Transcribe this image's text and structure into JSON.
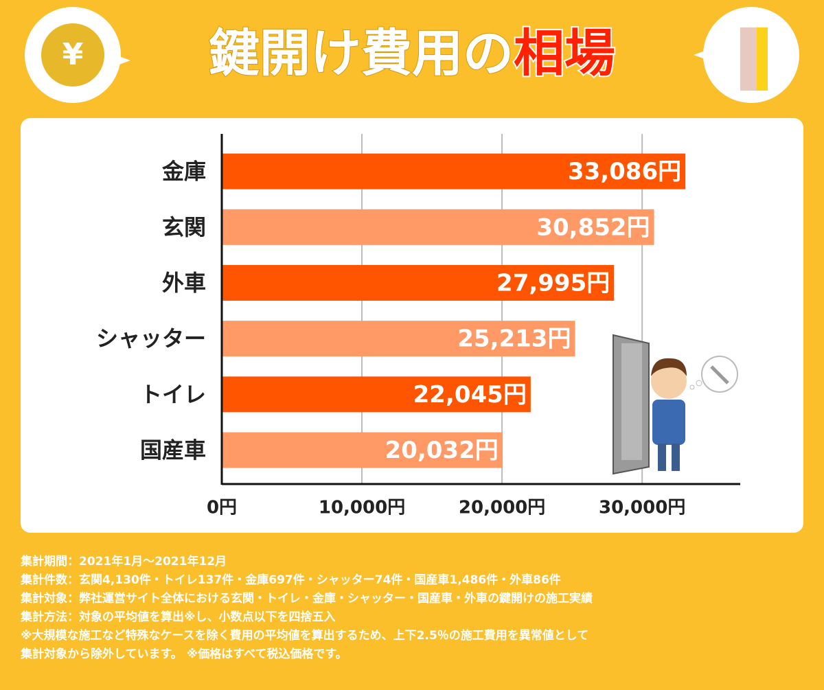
{
  "chart_data": {
    "type": "barh",
    "title": "鍵開け費用の",
    "title_highlight": "相場",
    "categories": [
      "金庫",
      "玄関",
      "外車",
      "シャッター",
      "トイレ",
      "国産車"
    ],
    "values": [
      33086,
      30852,
      27995,
      25213,
      22045,
      20032
    ],
    "value_labels": [
      "33,086円",
      "30,852円",
      "27,995円",
      "25,213円",
      "22,045円",
      "20,032円"
    ],
    "colors": [
      "#ff5500",
      "#ff9966",
      "#ff5500",
      "#ff9966",
      "#ff5500",
      "#ff9966"
    ],
    "xlim": [
      0,
      37000
    ],
    "xticks": [
      {
        "value": 0,
        "label": "0円"
      },
      {
        "value": 10000,
        "label": "10,000円"
      },
      {
        "value": 20000,
        "label": "20,000円"
      },
      {
        "value": 30000,
        "label": "30,000円"
      }
    ],
    "grid": true,
    "notes": [
      "集計期間：2021年1月～2021年12月",
      "集計件数：玄関4,130件・トイレ137件・金庫697件・シャッター74件・国産車1,486件・外車86件",
      "集計対象：弊社運営サイト全体における玄関・トイレ・金庫・シャッター・国産車・外車の鍵開けの施工実績",
      "集計方法：対象の平均値を算出※し、小数点以下を四捨五入",
      "※大規模な施工など特殊なケースを除く費用の平均値を算出するため、上下2.5％の施工費用を異常値として",
      "集計対象から除外しています。 ※価格はすべて税込価格です。"
    ]
  }
}
